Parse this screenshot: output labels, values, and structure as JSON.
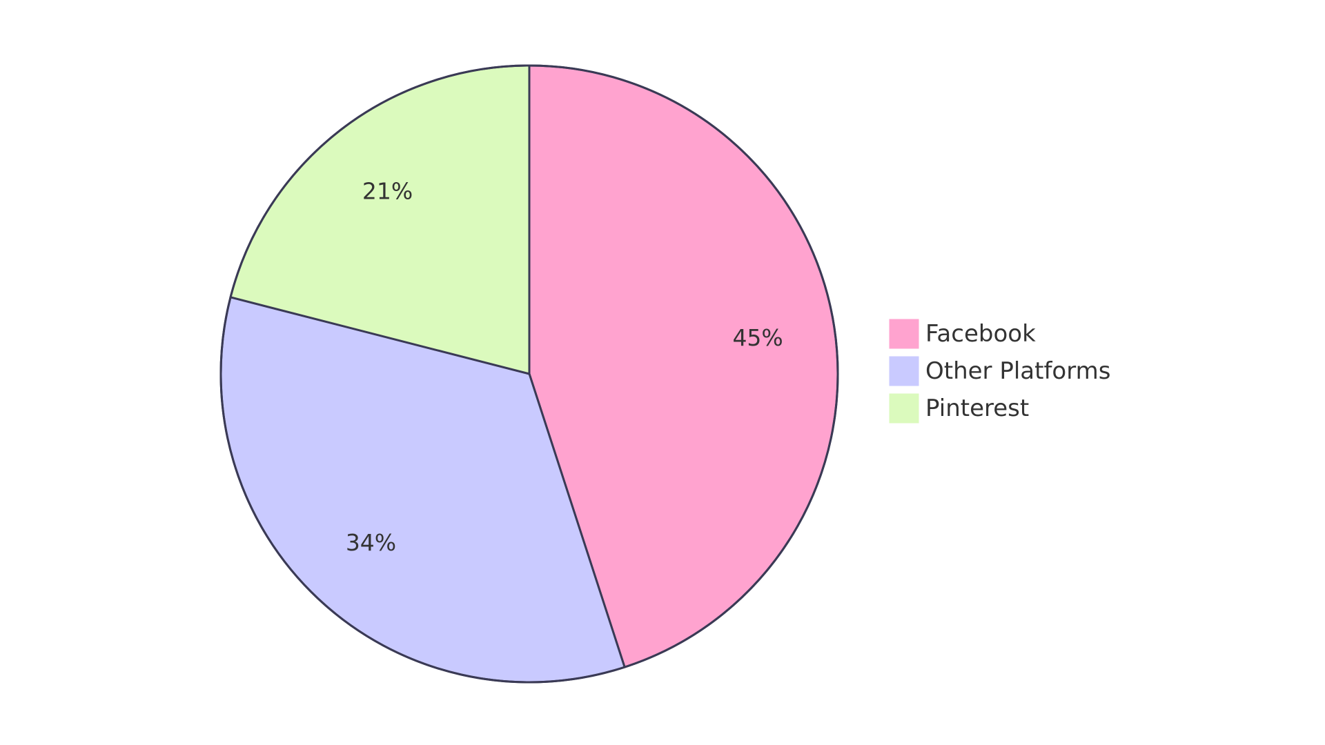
{
  "chart_data": {
    "type": "pie",
    "title": "",
    "slices": [
      {
        "label": "Facebook",
        "value": 45,
        "display": "45%",
        "color": "#ffa3cf"
      },
      {
        "label": "Other Platforms",
        "value": 34,
        "display": "34%",
        "color": "#c9caff"
      },
      {
        "label": "Pinterest",
        "value": 21,
        "display": "21%",
        "color": "#dbfabd"
      }
    ],
    "start_angle": "12 o'clock",
    "direction": "clockwise",
    "legend_placement": "right"
  }
}
